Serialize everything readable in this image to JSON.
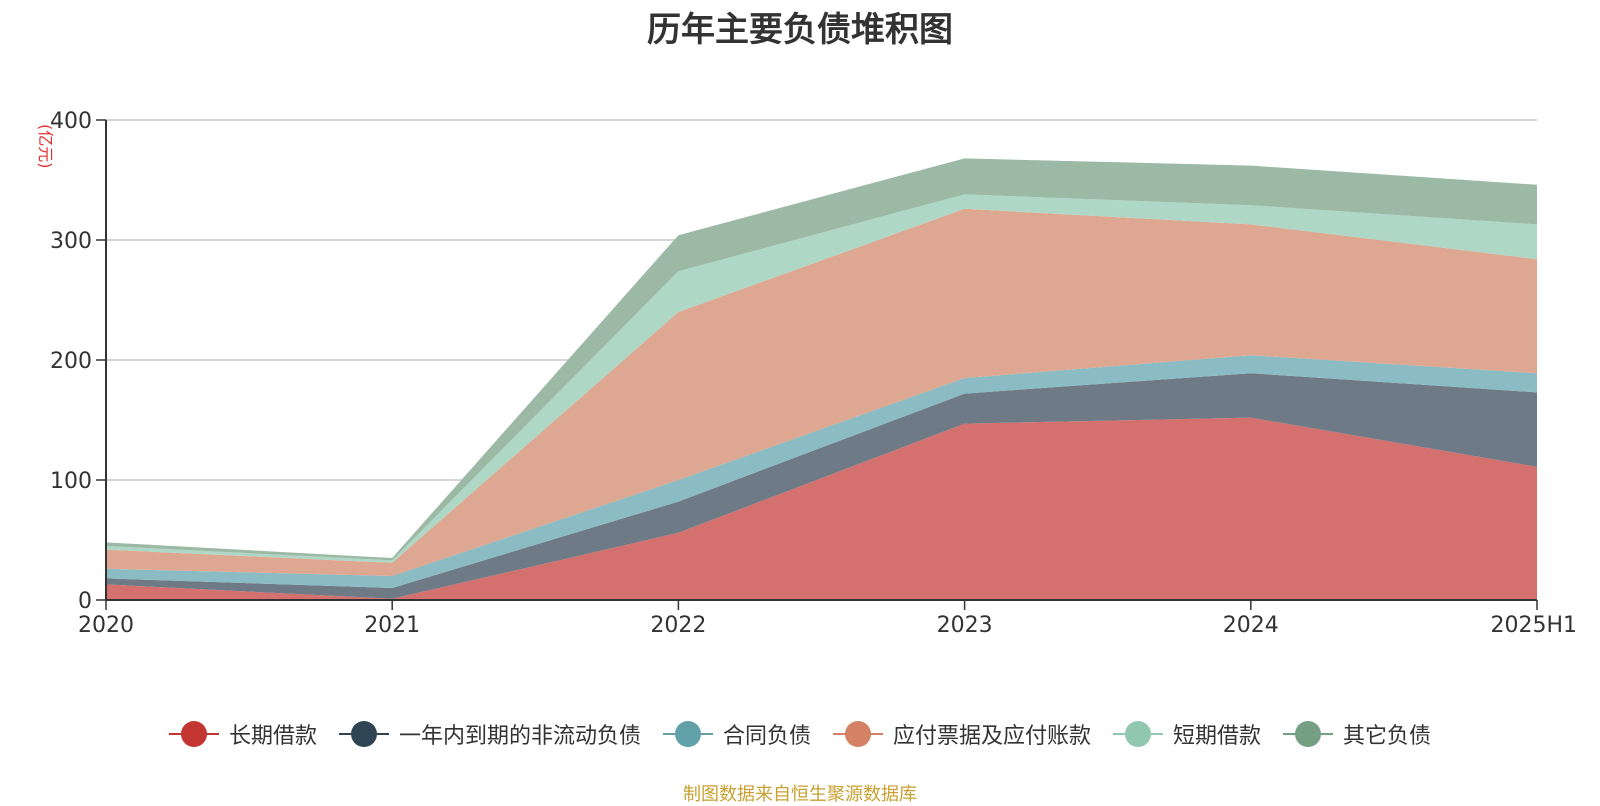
{
  "chart_data": {
    "type": "area",
    "title": "历年主要负债堆积图",
    "unit_label": "(亿元)",
    "categories": [
      "2020",
      "2021",
      "2022",
      "2023",
      "2024",
      "2025H1"
    ],
    "y_ticks": [
      "0",
      "100",
      "200",
      "300",
      "400"
    ],
    "ylim": [
      0,
      400
    ],
    "stacked": true,
    "grid": true,
    "legend_position": "bottom",
    "series": [
      {
        "name": "长期借款",
        "values": [
          13,
          1,
          56,
          147,
          152,
          111
        ],
        "color": "#d4706d",
        "legend_color": "#c23531"
      },
      {
        "name": "一年内到期的非流动负债",
        "values": [
          5,
          9,
          26,
          25,
          37,
          62
        ],
        "color": "#6e7b86",
        "legend_color": "#2f4554"
      },
      {
        "name": "合同负债",
        "values": [
          8,
          10,
          18,
          13,
          15,
          16
        ],
        "color": "#8bbcc4",
        "legend_color": "#61a0a8"
      },
      {
        "name": "应付票据及应付账款",
        "values": [
          16,
          11,
          140,
          141,
          109,
          95
        ],
        "color": "#dea791",
        "legend_color": "#d48265"
      },
      {
        "name": "短期借款",
        "values": [
          3,
          2,
          34,
          12,
          16,
          29
        ],
        "color": "#afd7c5",
        "legend_color": "#91c7ae"
      },
      {
        "name": "其它负债",
        "values": [
          3,
          2,
          30,
          30,
          33,
          33
        ],
        "color": "#9bb9a5",
        "legend_color": "#749f83"
      }
    ]
  },
  "source_note": "制图数据来自恒生聚源数据库"
}
